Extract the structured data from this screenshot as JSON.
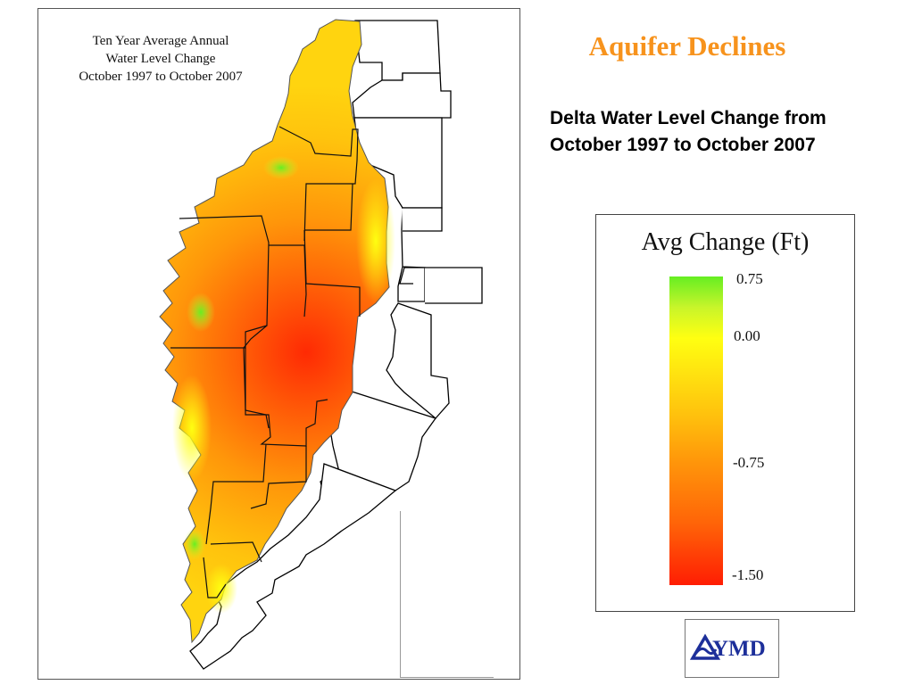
{
  "slide": {
    "title": "Aquifer Declines",
    "subtitle_lines": [
      "Delta Water Level Change from",
      "October 1997 to October 2007"
    ]
  },
  "map": {
    "title_lines": [
      "Ten Year Average Annual",
      "Water Level Change",
      "October 1997 to October 2007"
    ]
  },
  "legend": {
    "title": "Avg Change (Ft)",
    "ticks": [
      "0.75",
      "0.00",
      "-0.75",
      "-1.50"
    ],
    "range": [
      -1.5,
      0.75
    ],
    "colors": {
      "max": "#66ee22",
      "zero": "#ffff11",
      "mid": "#ff960a",
      "min": "#ff1d03"
    }
  },
  "logo": {
    "text": "YMD",
    "color": "#1d2f9a"
  }
}
